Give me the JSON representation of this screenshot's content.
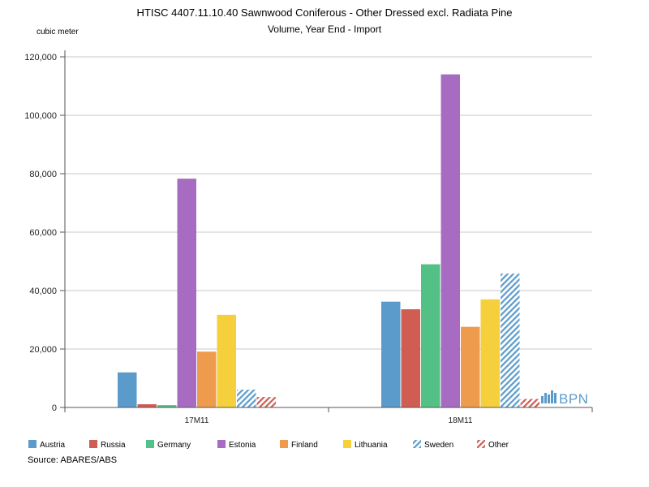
{
  "chart_data": {
    "type": "bar",
    "title": "HTISC 4407.11.10.40 Sawnwood Coniferous - Other Dressed excl. Radiata Pine",
    "subtitle": "Volume, Year End - Import",
    "ylabel": "cubic meter",
    "xlabel": "",
    "ylim": [
      0,
      120000
    ],
    "yticks": [
      0,
      20000,
      40000,
      60000,
      80000,
      100000,
      120000
    ],
    "ytick_labels": [
      "0",
      "20,000",
      "40,000",
      "60,000",
      "80,000",
      "100,000",
      "120,000"
    ],
    "grid": true,
    "legend_position": "bottom",
    "categories": [
      "17M11",
      "18M11"
    ],
    "series": [
      {
        "name": "Austria",
        "color": "#5b9bcb",
        "pattern": "solid",
        "values": [
          12000,
          36200
        ]
      },
      {
        "name": "Russia",
        "color": "#cf5d52",
        "pattern": "solid",
        "values": [
          1100,
          33600
        ]
      },
      {
        "name": "Germany",
        "color": "#53c185",
        "pattern": "solid",
        "values": [
          800,
          49000
        ]
      },
      {
        "name": "Estonia",
        "color": "#a76bc1",
        "pattern": "solid",
        "values": [
          78300,
          114000
        ]
      },
      {
        "name": "Finland",
        "color": "#ee9b4d",
        "pattern": "solid",
        "values": [
          19100,
          27600
        ]
      },
      {
        "name": "Lithuania",
        "color": "#f5cf3c",
        "pattern": "solid",
        "values": [
          31700,
          37000
        ]
      },
      {
        "name": "Sweden",
        "color": "#5b9bcb",
        "pattern": "hatch",
        "values": [
          6100,
          45800
        ]
      },
      {
        "name": "Other",
        "color": "#cf5d52",
        "pattern": "hatch",
        "values": [
          3600,
          2900
        ]
      }
    ],
    "source": "Source: ABARES/ABS",
    "logo_text": "BPN"
  }
}
